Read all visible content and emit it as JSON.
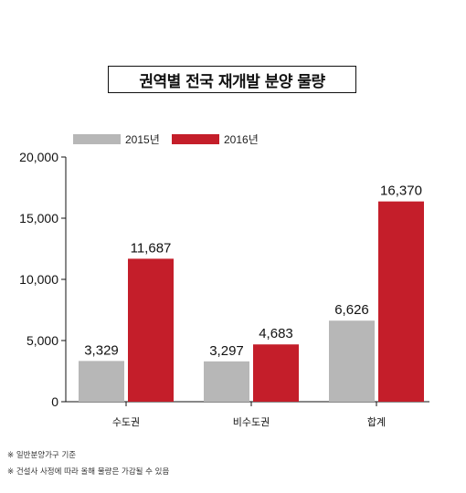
{
  "chart_data": {
    "type": "bar",
    "title": "권역별 전국 재개발 분양 물량",
    "categories": [
      "수도권",
      "비수도권",
      "합계"
    ],
    "series": [
      {
        "name": "2015년",
        "values": [
          3329,
          3297,
          6626
        ],
        "color": "#b7b7b7"
      },
      {
        "name": "2016년",
        "values": [
          11687,
          4683,
          16370
        ],
        "color": "#c41e2a"
      }
    ],
    "value_labels": [
      [
        "3,329",
        "3,297",
        "6,626"
      ],
      [
        "11,687",
        "4,683",
        "16,370"
      ]
    ],
    "ylim": [
      0,
      20000
    ],
    "yticks": [
      0,
      5000,
      10000,
      15000,
      20000
    ],
    "ytick_labels": [
      "0",
      "5,000",
      "10,000",
      "15,000",
      "20,000"
    ],
    "grid": false,
    "legend_position": "top-left"
  },
  "notes": [
    "※ 일반분양가구 기준",
    "※ 건설사 사정에 따라 올해 물량은 가감될 수 있음"
  ]
}
